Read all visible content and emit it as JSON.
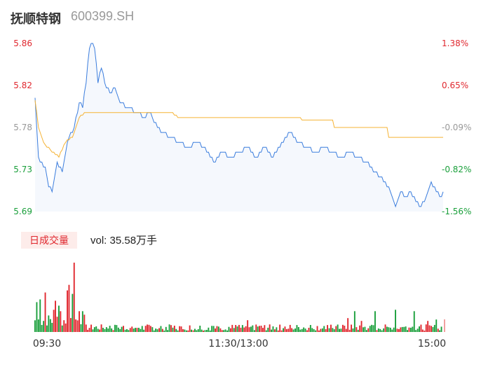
{
  "header": {
    "stock_name": "抚顺特钢",
    "stock_code": "600399.SH"
  },
  "volume_panel": {
    "badge_label": "日成交量",
    "vol_prefix": "vol: ",
    "vol_value": "35.58万手"
  },
  "chart_data": [
    {
      "type": "line",
      "title": "",
      "yticks_left": [
        "5.86",
        "5.82",
        "5.78",
        "5.73",
        "5.69"
      ],
      "yticks_right": [
        "1.38%",
        "0.65%",
        "-0.09%",
        "-0.82%",
        "-1.56%"
      ],
      "ylim": [
        5.69,
        5.86
      ],
      "colors": {
        "price": "#3b7ddd",
        "avg": "#f5b335",
        "up": "#e0282f",
        "down": "#1a9f3b",
        "flat": "#999999"
      },
      "price_keypoints": [
        [
          0,
          5.803
        ],
        [
          1,
          5.775
        ],
        [
          2,
          5.745
        ],
        [
          3,
          5.74
        ],
        [
          6,
          5.735
        ],
        [
          8,
          5.715
        ],
        [
          10,
          5.71
        ],
        [
          11,
          5.72
        ],
        [
          13,
          5.74
        ],
        [
          16,
          5.73
        ],
        [
          19,
          5.76
        ],
        [
          23,
          5.775
        ],
        [
          26,
          5.8
        ],
        [
          28,
          5.795
        ],
        [
          30,
          5.82
        ],
        [
          32,
          5.855
        ],
        [
          33,
          5.86
        ],
        [
          35,
          5.855
        ],
        [
          37,
          5.82
        ],
        [
          39,
          5.835
        ],
        [
          41,
          5.82
        ],
        [
          44,
          5.81
        ],
        [
          47,
          5.815
        ],
        [
          50,
          5.8
        ],
        [
          55,
          5.795
        ],
        [
          60,
          5.79
        ],
        [
          64,
          5.785
        ],
        [
          68,
          5.79
        ],
        [
          70,
          5.78
        ],
        [
          75,
          5.77
        ],
        [
          80,
          5.765
        ],
        [
          85,
          5.76
        ],
        [
          90,
          5.755
        ],
        [
          95,
          5.76
        ],
        [
          100,
          5.755
        ],
        [
          105,
          5.74
        ],
        [
          110,
          5.75
        ],
        [
          115,
          5.745
        ],
        [
          120,
          5.75
        ],
        [
          125,
          5.755
        ],
        [
          130,
          5.745
        ],
        [
          135,
          5.755
        ],
        [
          140,
          5.745
        ],
        [
          145,
          5.76
        ],
        [
          150,
          5.77
        ],
        [
          155,
          5.76
        ],
        [
          160,
          5.755
        ],
        [
          165,
          5.75
        ],
        [
          170,
          5.755
        ],
        [
          175,
          5.75
        ],
        [
          180,
          5.745
        ],
        [
          185,
          5.75
        ],
        [
          190,
          5.745
        ],
        [
          195,
          5.74
        ],
        [
          200,
          5.73
        ],
        [
          203,
          5.725
        ],
        [
          206,
          5.72
        ],
        [
          209,
          5.71
        ],
        [
          212,
          5.695
        ],
        [
          215,
          5.71
        ],
        [
          218,
          5.705
        ],
        [
          221,
          5.71
        ],
        [
          224,
          5.7
        ],
        [
          227,
          5.695
        ],
        [
          230,
          5.705
        ],
        [
          233,
          5.72
        ],
        [
          236,
          5.71
        ],
        [
          239,
          5.705
        ],
        [
          240,
          5.71
        ]
      ],
      "avg_keypoints": [
        [
          0,
          5.803
        ],
        [
          2,
          5.775
        ],
        [
          5,
          5.76
        ],
        [
          10,
          5.75
        ],
        [
          14,
          5.745
        ],
        [
          18,
          5.76
        ],
        [
          22,
          5.765
        ],
        [
          26,
          5.785
        ],
        [
          30,
          5.79
        ],
        [
          35,
          5.79
        ],
        [
          40,
          5.79
        ],
        [
          60,
          5.79
        ],
        [
          80,
          5.79
        ],
        [
          85,
          5.785
        ],
        [
          120,
          5.785
        ],
        [
          150,
          5.784
        ],
        [
          175,
          5.783
        ],
        [
          176,
          5.775
        ],
        [
          190,
          5.775
        ],
        [
          207,
          5.775
        ],
        [
          208,
          5.765
        ],
        [
          240,
          5.765
        ]
      ],
      "total_minutes": 240
    },
    {
      "type": "bar",
      "title": "",
      "xticks": [
        "09:30",
        "11:30/13:00",
        "15:00"
      ],
      "bar_seed": 7,
      "spikes": [
        [
          23,
          1.0
        ],
        [
          20,
          0.68
        ],
        [
          22,
          0.55
        ],
        [
          19,
          0.6
        ],
        [
          6,
          0.57
        ],
        [
          3,
          0.47
        ],
        [
          1,
          0.43
        ],
        [
          14,
          0.38
        ],
        [
          12,
          0.45
        ],
        [
          11,
          0.32
        ],
        [
          15,
          0.3
        ],
        [
          28,
          0.3
        ],
        [
          26,
          0.3
        ],
        [
          188,
          0.3
        ],
        [
          200,
          0.3
        ],
        [
          212,
          0.32
        ],
        [
          223,
          0.3
        ],
        [
          184,
          0.2
        ],
        [
          125,
          0.17
        ],
        [
          192,
          0.16
        ],
        [
          231,
          0.16
        ],
        [
          236,
          0.18
        ]
      ]
    }
  ]
}
